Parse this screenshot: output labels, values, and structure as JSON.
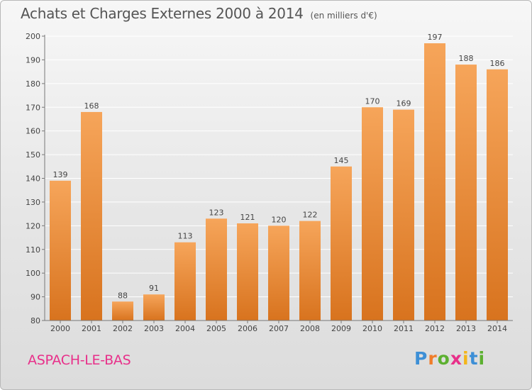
{
  "header": {
    "title": "Achats et Charges Externes 2000 à 2014",
    "unit": "(en milliers d'€)"
  },
  "footer": {
    "commune": "ASPACH-LE-BAS",
    "logo_letters": [
      "P",
      "r",
      "o",
      "x",
      "i",
      "t",
      "i"
    ],
    "logo_colors": [
      "#3d8fd6",
      "#f07d2a",
      "#5cb030",
      "#e8308a",
      "#f3b51a",
      "#3d8fd6",
      "#5cb030"
    ]
  },
  "chart_data": {
    "type": "bar",
    "title": "Achats et Charges Externes 2000 à 2014",
    "subtitle": "(en milliers d'€)",
    "xlabel": "",
    "ylabel": "",
    "categories": [
      "2000",
      "2001",
      "2002",
      "2003",
      "2004",
      "2005",
      "2006",
      "2007",
      "2008",
      "2009",
      "2010",
      "2011",
      "2012",
      "2013",
      "2014"
    ],
    "values": [
      139,
      168,
      88,
      91,
      113,
      123,
      121,
      120,
      122,
      145,
      170,
      169,
      197,
      188,
      186
    ],
    "ylim": [
      80,
      200
    ],
    "yticks": [
      80,
      90,
      100,
      110,
      120,
      130,
      140,
      150,
      160,
      170,
      180,
      190,
      200
    ],
    "grid": true,
    "bar_color_top": "#f6a55a",
    "bar_color_bottom": "#d8731e"
  }
}
